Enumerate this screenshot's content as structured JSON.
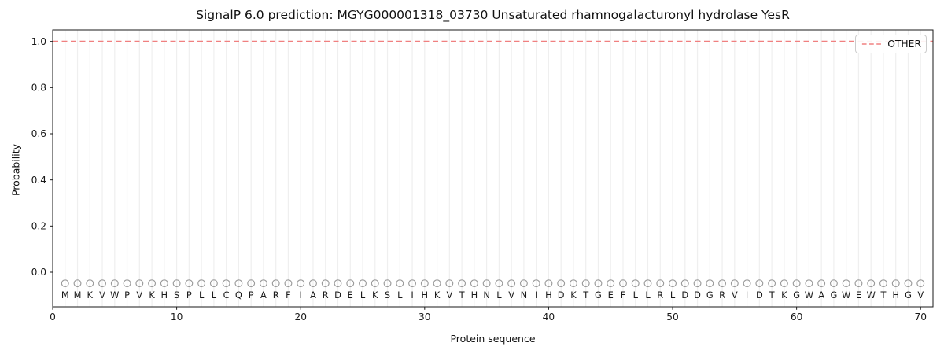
{
  "figure": {
    "title": "SignalP 6.0 prediction: MGYG000001318_03730 Unsaturated rhamnogalacturonyl hydrolase YesR",
    "xlabel": "Protein sequence",
    "ylabel": "Probability"
  },
  "legend": {
    "position": "upper right",
    "entries": [
      {
        "label": "OTHER",
        "color": "#f08080",
        "line_style": "dashed"
      }
    ]
  },
  "chart_data": {
    "type": "line",
    "title": "SignalP 6.0 prediction: MGYG000001318_03730 Unsaturated rhamnogalacturonyl hydrolase YesR",
    "xlabel": "Protein sequence",
    "ylabel": "Probability",
    "xlim": [
      0,
      71
    ],
    "ylim": [
      -0.15,
      1.05
    ],
    "xticks": [
      0,
      10,
      20,
      30,
      40,
      50,
      60,
      70
    ],
    "ytick_labels": [
      "0.0",
      "0.2",
      "0.4",
      "0.6",
      "0.8",
      "1.0"
    ],
    "ytick_values": [
      0.0,
      0.2,
      0.4,
      0.6,
      0.8,
      1.0
    ],
    "grid": {
      "vertical_line_per_residue": true,
      "horizontal": false
    },
    "series": [
      {
        "name": "OTHER",
        "style": "dashed",
        "color": "#f08080",
        "x_start": 0,
        "x_end": 71,
        "y_constant": 1.0
      }
    ],
    "sequence": "MMKVWPVKHSPLLCQPARFIARDELKSLIHKVTHNLVNIHDKTGEFLLRLDDGRVIDTKGWAGWEWTHGV",
    "sequence_start_position": 1,
    "sequence_end_position": 70,
    "marker_row": {
      "y": -0.05,
      "marker": "open-circle"
    },
    "legend_position": "upper right"
  },
  "colors": {
    "other_line": "#f08080",
    "grid_line": "#efefef",
    "marker_stroke": "#9a9a9a",
    "sequence_letter": "#1a1a1a",
    "axis_spine": "#1a1a1a",
    "tick_label": "#1a1a1a",
    "legend_border": "#cccccc"
  }
}
